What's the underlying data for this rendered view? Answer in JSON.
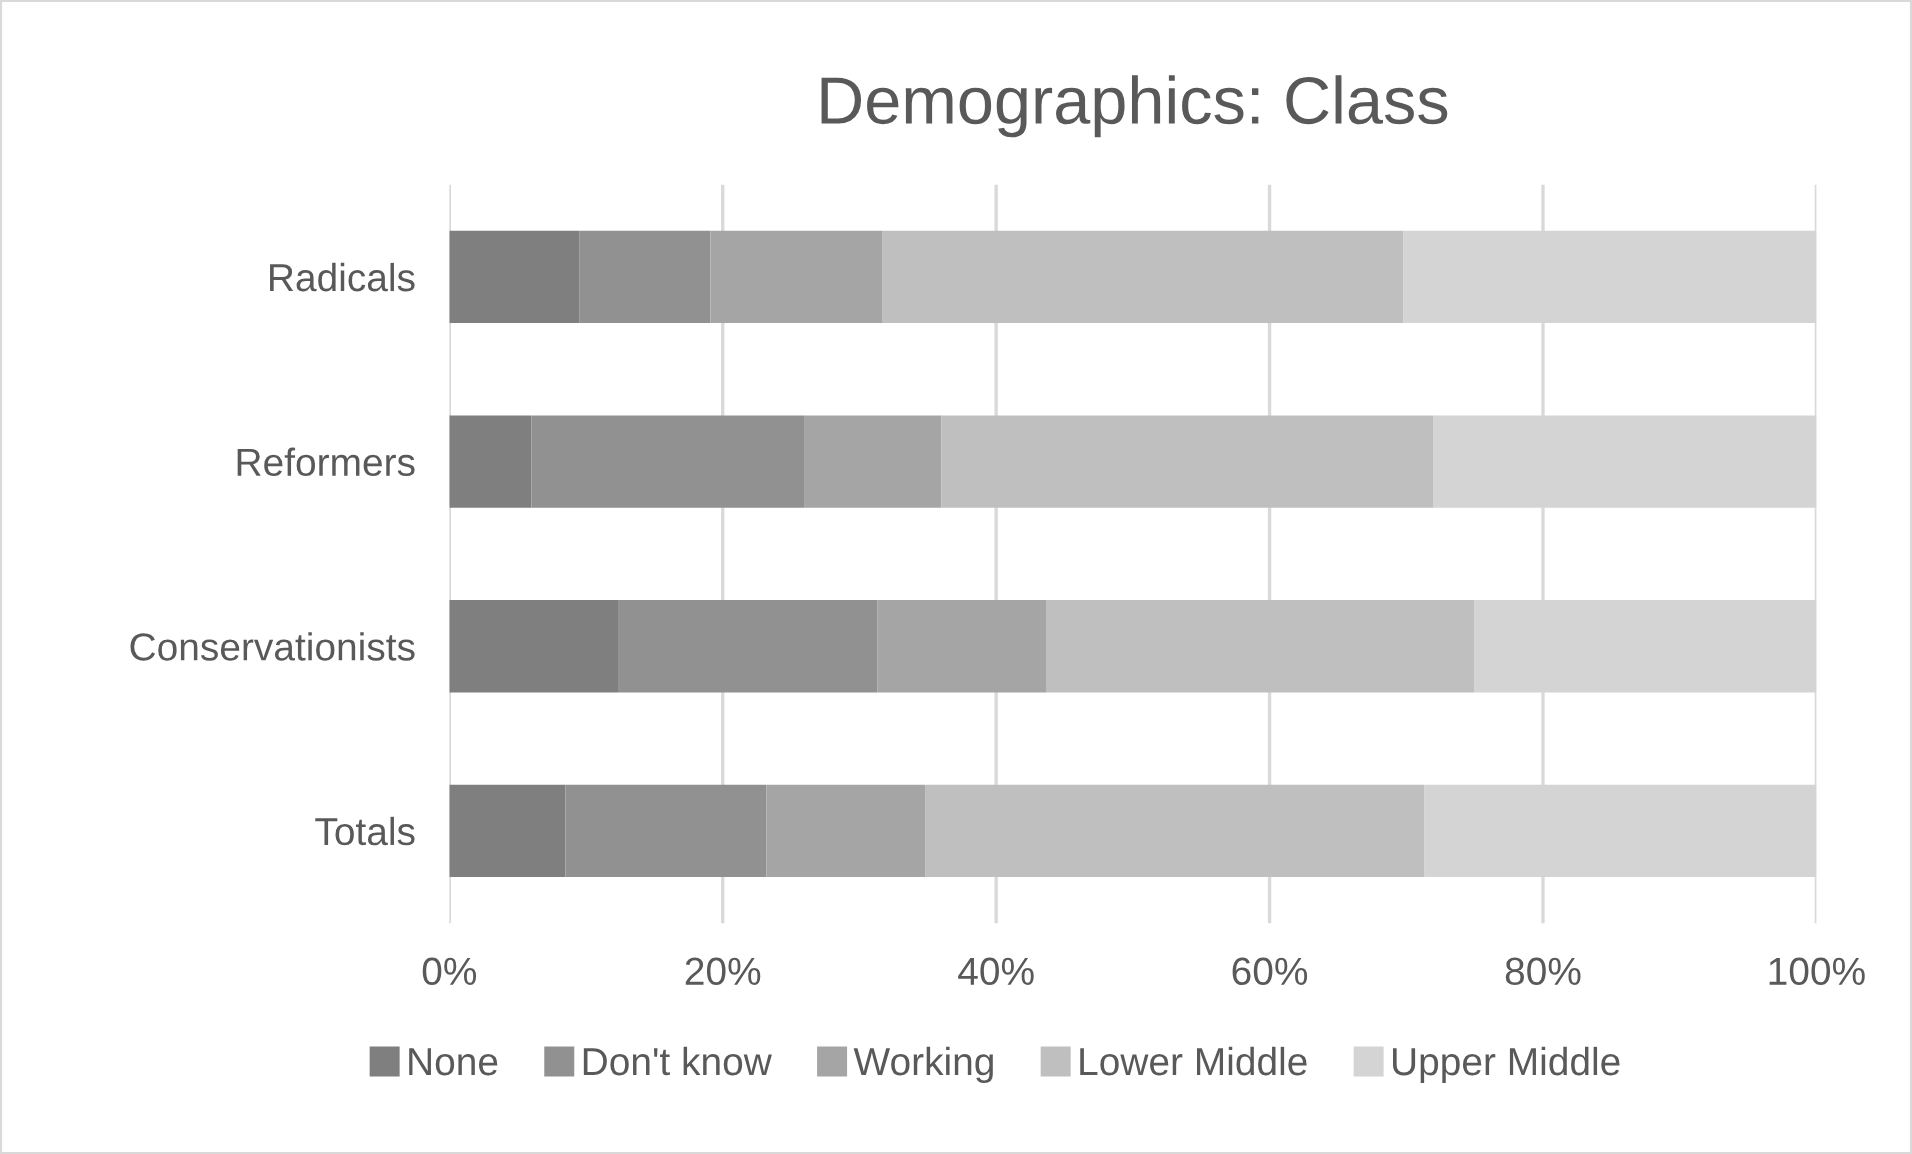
{
  "chart_data": {
    "type": "bar",
    "orientation": "horizontal",
    "stacked": true,
    "title": "Demographics: Class",
    "categories": [
      "Radicals",
      "Reformers",
      "Conservationists",
      "Totals"
    ],
    "series": [
      {
        "name": "None",
        "color": "#7f7f7f",
        "values": [
          9.5,
          6,
          12.4,
          8.5
        ]
      },
      {
        "name": "Don't know",
        "color": "#919191",
        "values": [
          9.6,
          20,
          18.9,
          14.7
        ]
      },
      {
        "name": "Working",
        "color": "#a5a5a5",
        "values": [
          12.6,
          10,
          12.4,
          11.6
        ]
      },
      {
        "name": "Lower Middle",
        "color": "#bfbfbf",
        "values": [
          38.1,
          36,
          31.3,
          36.5
        ]
      },
      {
        "name": "Upper Middle",
        "color": "#d4d4d4",
        "values": [
          30.2,
          28,
          25.0,
          28.7
        ]
      }
    ],
    "xlim": [
      0,
      100
    ],
    "xticks": [
      {
        "value": 0,
        "label": "0%"
      },
      {
        "value": 20,
        "label": "20%"
      },
      {
        "value": 40,
        "label": "40%"
      },
      {
        "value": 60,
        "label": "60%"
      },
      {
        "value": 80,
        "label": "80%"
      },
      {
        "value": 100,
        "label": "100%"
      }
    ],
    "grid": "x",
    "legend": "bottom"
  }
}
